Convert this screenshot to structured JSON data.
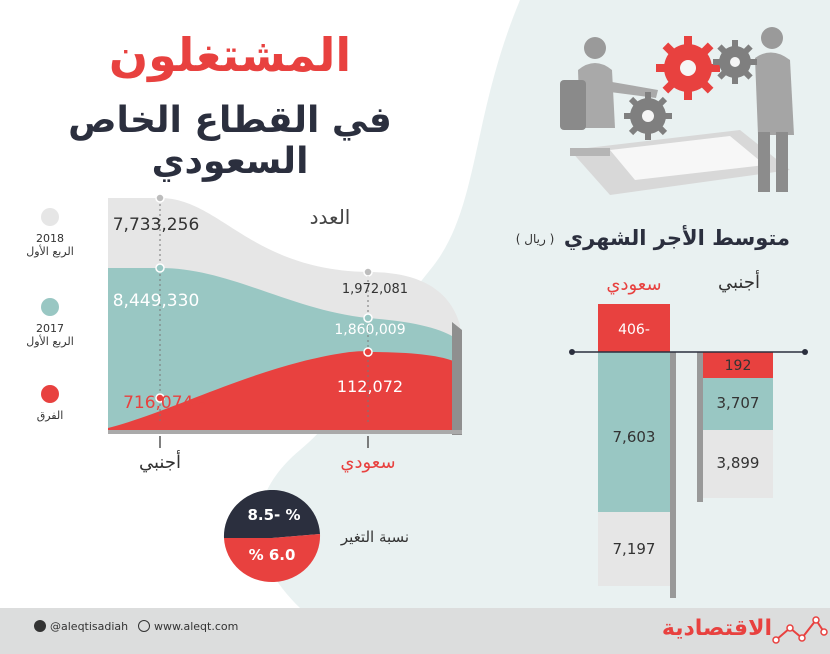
{
  "title": {
    "line1": "المشتغلون",
    "line2": "في القطاع الخاص السعودي"
  },
  "count_panel": {
    "heading": "العدد",
    "legend": [
      {
        "year": "2018",
        "quarter": "الربع الأول",
        "color": "#e6e6e6"
      },
      {
        "year": "2017",
        "quarter": "الربع الأول",
        "color": "#99c7c3"
      },
      {
        "label": "الفرق",
        "color": "#e8413f"
      }
    ],
    "categories": [
      "أجنبي",
      "سعودي"
    ],
    "labels": {
      "foreign_2018": "7,733,256",
      "foreign_2017": "8,449,330",
      "foreign_diff": "716,074 -",
      "saudi_2018": "1,972,081",
      "saudi_2017": "1,860,009",
      "saudi_diff": "112,072"
    }
  },
  "change_rate": {
    "label": "نسبة التغير",
    "foreign": "8.5- %",
    "saudi": "% 6.0"
  },
  "wage_panel": {
    "heading": "متوسط الأجر الشهري",
    "unit": "( ريال )",
    "columns": [
      {
        "name": "سعودي",
        "values": {
          "2018": "7,197",
          "2017": "7,603",
          "diff": "406-"
        }
      },
      {
        "name": "أجنبي",
        "values": {
          "2018": "3,899",
          "2017": "3,707",
          "diff": "192"
        }
      }
    ]
  },
  "footer": {
    "twitter": "@aleqtisadiah",
    "web": "www.aleqt.com",
    "brand": "الاقتصادية"
  },
  "chart_data": [
    {
      "type": "area",
      "title": "العدد",
      "categories": [
        "أجنبي",
        "سعودي"
      ],
      "series": [
        {
          "name": "2018 الربع الأول",
          "values": [
            7733256,
            1972081
          ]
        },
        {
          "name": "2017 الربع الأول",
          "values": [
            8449330,
            1860009
          ]
        },
        {
          "name": "الفرق",
          "values": [
            -716074,
            112072
          ]
        }
      ]
    },
    {
      "type": "pie",
      "title": "نسبة التغير",
      "categories": [
        "أجنبي",
        "سعودي"
      ],
      "values": [
        -8.5,
        6.0
      ]
    },
    {
      "type": "bar",
      "title": "متوسط الأجر الشهري",
      "ylabel": "ريال",
      "categories": [
        "سعودي",
        "أجنبي"
      ],
      "series": [
        {
          "name": "2018 الربع الأول",
          "values": [
            7197,
            3899
          ]
        },
        {
          "name": "2017 الربع الأول",
          "values": [
            7603,
            3707
          ]
        },
        {
          "name": "الفرق",
          "values": [
            -406,
            192
          ]
        }
      ]
    }
  ],
  "colors": {
    "red": "#e8413f",
    "teal": "#99c7c3",
    "grey": "#e6e6e6",
    "dark": "#2b2f3e",
    "bg_blob": "#e9f1f1"
  }
}
